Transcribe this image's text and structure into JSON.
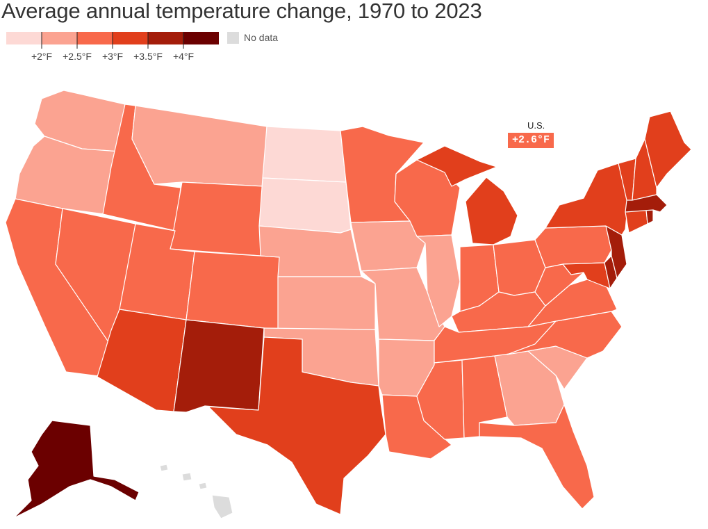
{
  "title": "Average annual temperature change, 1970 to 2023",
  "legend": {
    "colors": [
      "#fdd9d5",
      "#fba391",
      "#f8694b",
      "#e13f1c",
      "#a41d0a",
      "#6b0000"
    ],
    "ticks": [
      "+2°F",
      "+2.5°F",
      "+3°F",
      "+3.5°F",
      "+4°F"
    ],
    "no_data_label": "No data",
    "no_data_color": "#dcdcdc"
  },
  "us": {
    "label": "U.S.",
    "value": "+2.6°F",
    "color": "#f8694b"
  },
  "states": {
    "WA": 1,
    "OR": 1,
    "CA": 2,
    "NV": 2,
    "ID": 2,
    "MT": 1,
    "WY": 2,
    "UT": 2,
    "AZ": 3,
    "CO": 2,
    "NM": 4,
    "ND": 0,
    "SD": 0,
    "NE": 1,
    "KS": 1,
    "OK": 1,
    "TX": 3,
    "MN": 2,
    "IA": 1,
    "MO": 1,
    "AR": 1,
    "LA": 2,
    "WI": 2,
    "IL": 1,
    "MI": 3,
    "IN": 2,
    "OH": 2,
    "KY": 2,
    "TN": 2,
    "MS": 2,
    "AL": 2,
    "GA": 1,
    "FL": 2,
    "SC": 1,
    "NC": 2,
    "VA": 2,
    "WV": 2,
    "PA": 2,
    "NY": 3,
    "VT": 3,
    "NH": 3,
    "ME": 3,
    "MA": 4,
    "RI": 4,
    "CT": 3,
    "NJ": 4,
    "DE": 4,
    "MD": 3,
    "AK": 5,
    "HI": "nodata"
  }
}
